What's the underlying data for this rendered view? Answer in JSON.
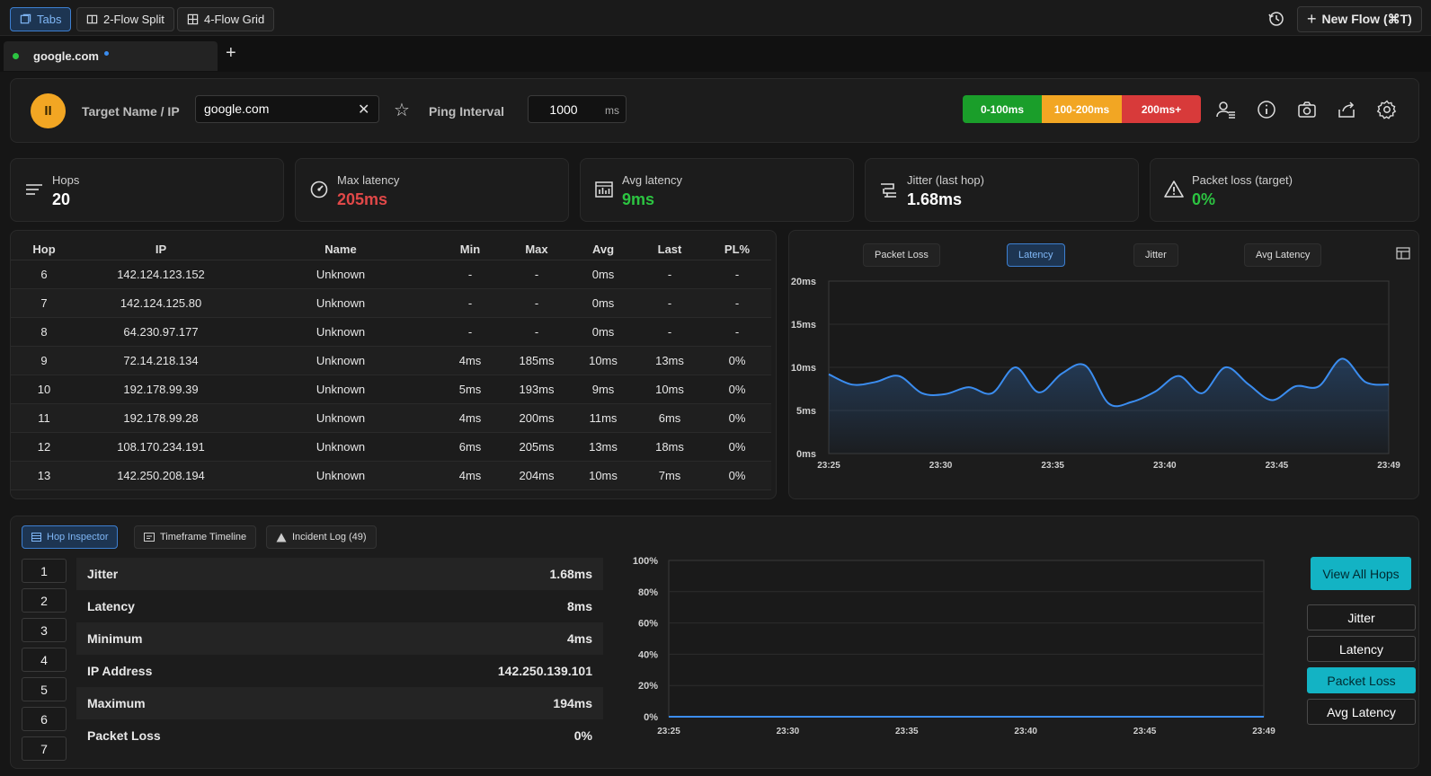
{
  "toolbar": {
    "tabs_label": "Tabs",
    "split_label": "2-Flow Split",
    "grid_label": "4-Flow Grid",
    "new_flow_label": "New Flow (⌘T)"
  },
  "tab": {
    "title": "google.com",
    "add": "+"
  },
  "controls": {
    "pause_symbol": "II",
    "target_label": "Target Name / IP",
    "target_value": "google.com",
    "clear_symbol": "✕",
    "favorite_symbol": "☆",
    "interval_label": "Ping Interval",
    "interval_value": "1000",
    "interval_unit": "ms",
    "legend": [
      {
        "label": "0-100ms",
        "color": "#1a9e2a"
      },
      {
        "label": "100-200ms",
        "color": "#f2a623"
      },
      {
        "label": "200ms+",
        "color": "#d83a3a"
      }
    ]
  },
  "stats": [
    {
      "label": "Hops",
      "value": "20",
      "color": "#ffffff",
      "icon": "list-icon"
    },
    {
      "label": "Max latency",
      "value": "205ms",
      "color": "#e04848",
      "icon": "gauge-icon"
    },
    {
      "label": "Avg latency",
      "value": "9ms",
      "color": "#2cc441",
      "icon": "bar-chart-icon"
    },
    {
      "label": "Jitter (last hop)",
      "value": "1.68ms",
      "color": "#ffffff",
      "icon": "jitter-icon"
    },
    {
      "label": "Packet loss (target)",
      "value": "0%",
      "color": "#2cc441",
      "icon": "warning-icon"
    }
  ],
  "table": {
    "headers": [
      "Hop",
      "IP",
      "Name",
      "Min",
      "Max",
      "Avg",
      "Last",
      "PL%"
    ],
    "rows": [
      [
        "6",
        "142.124.123.152",
        "Unknown",
        "-",
        "-",
        "0ms",
        "-",
        "-"
      ],
      [
        "7",
        "142.124.125.80",
        "Unknown",
        "-",
        "-",
        "0ms",
        "-",
        "-"
      ],
      [
        "8",
        "64.230.97.177",
        "Unknown",
        "-",
        "-",
        "0ms",
        "-",
        "-"
      ],
      [
        "9",
        "72.14.218.134",
        "Unknown",
        "4ms",
        "185ms",
        "10ms",
        "13ms",
        "0%"
      ],
      [
        "10",
        "192.178.99.39",
        "Unknown",
        "5ms",
        "193ms",
        "9ms",
        "10ms",
        "0%"
      ],
      [
        "11",
        "192.178.99.28",
        "Unknown",
        "4ms",
        "200ms",
        "11ms",
        "6ms",
        "0%"
      ],
      [
        "12",
        "108.170.234.191",
        "Unknown",
        "6ms",
        "205ms",
        "13ms",
        "18ms",
        "0%"
      ],
      [
        "13",
        "142.250.208.194",
        "Unknown",
        "4ms",
        "204ms",
        "10ms",
        "7ms",
        "0%"
      ]
    ]
  },
  "chart_tabs": [
    "Packet Loss",
    "Latency",
    "Jitter",
    "Avg Latency"
  ],
  "chart_active": "Latency",
  "chart_data": [
    {
      "type": "area",
      "x": [
        "23:25",
        "23:26",
        "23:27",
        "23:28",
        "23:29",
        "23:30",
        "23:31",
        "23:32",
        "23:33",
        "23:34",
        "23:35",
        "23:36",
        "23:37",
        "23:38",
        "23:39",
        "23:40",
        "23:41",
        "23:42",
        "23:43",
        "23:44",
        "23:45",
        "23:46",
        "23:47",
        "23:48",
        "23:49"
      ],
      "series": [
        {
          "values": [
            9.2,
            8.0,
            8.3,
            9.0,
            7.0,
            6.9,
            7.7,
            7.0,
            10.0,
            7.1,
            9.3,
            10.2,
            5.8,
            6.0,
            7.2,
            9.0,
            7.0,
            10.0,
            8.0,
            6.2,
            7.8,
            7.8,
            11.0,
            8.3,
            8.0
          ],
          "color": "#3b8df0"
        }
      ],
      "xticks": [
        "23:25",
        "23:30",
        "23:35",
        "23:40",
        "23:45",
        "23:49"
      ],
      "yticks": [
        "0ms",
        "5ms",
        "10ms",
        "15ms",
        "20ms"
      ],
      "ylim": [
        0,
        20
      ]
    },
    {
      "type": "line",
      "xticks": [
        "23:25",
        "23:30",
        "23:35",
        "23:40",
        "23:45",
        "23:49"
      ],
      "yticks": [
        "0%",
        "20%",
        "40%",
        "60%",
        "80%",
        "100%"
      ],
      "series": [
        {
          "values": [
            0,
            0,
            0,
            0,
            0,
            0
          ],
          "color": "#3b8df0"
        }
      ],
      "ylim": [
        0,
        100
      ]
    }
  ],
  "inspector": {
    "tabs": [
      "Hop Inspector",
      "Timeframe Timeline",
      "Incident Log (49)"
    ],
    "hop_numbers": [
      "1",
      "2",
      "3",
      "4",
      "5",
      "6",
      "7"
    ],
    "details": [
      {
        "label": "Jitter",
        "value": "1.68ms"
      },
      {
        "label": "Latency",
        "value": "8ms"
      },
      {
        "label": "Minimum",
        "value": "4ms"
      },
      {
        "label": "IP Address",
        "value": "142.250.139.101"
      },
      {
        "label": "Maximum",
        "value": "194ms"
      },
      {
        "label": "Packet Loss",
        "value": "0%"
      }
    ],
    "side_buttons": [
      "View All Hops",
      "Jitter",
      "Latency",
      "Packet Loss",
      "Avg Latency"
    ]
  }
}
